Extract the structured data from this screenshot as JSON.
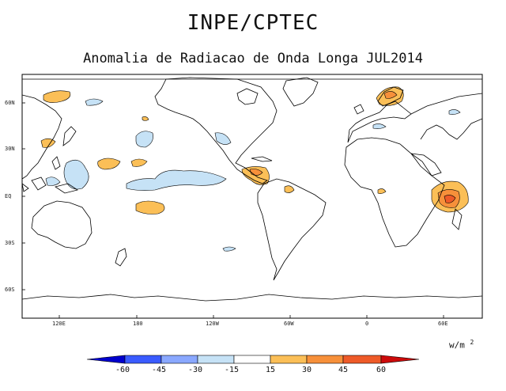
{
  "header": {
    "agency": "INPE/CPTEC",
    "subtitle": "Anomalia de Radiacao de Onda Longa JUL2014"
  },
  "map": {
    "projection": "cylindrical equidistant",
    "lat_ticks": [
      "60N",
      "30N",
      "EQ",
      "30S",
      "60S"
    ],
    "lon_ticks": [
      "120E",
      "180",
      "120W",
      "60W",
      "0",
      "60E"
    ],
    "features": [
      "coastlines",
      "positive OLR anomaly patches",
      "negative OLR anomaly patches"
    ]
  },
  "legend": {
    "units": "w/m",
    "units_exp": "2",
    "labels": [
      "-60",
      "-45",
      "-30",
      "-15",
      "15",
      "30",
      "45",
      "60"
    ],
    "colors": [
      "#0000cd",
      "#3a5bff",
      "#8aa8ff",
      "#c6e2f6",
      "#ffffff",
      "#fbbf57",
      "#f7903a",
      "#ee5a28",
      "#cc0a0a"
    ]
  }
}
